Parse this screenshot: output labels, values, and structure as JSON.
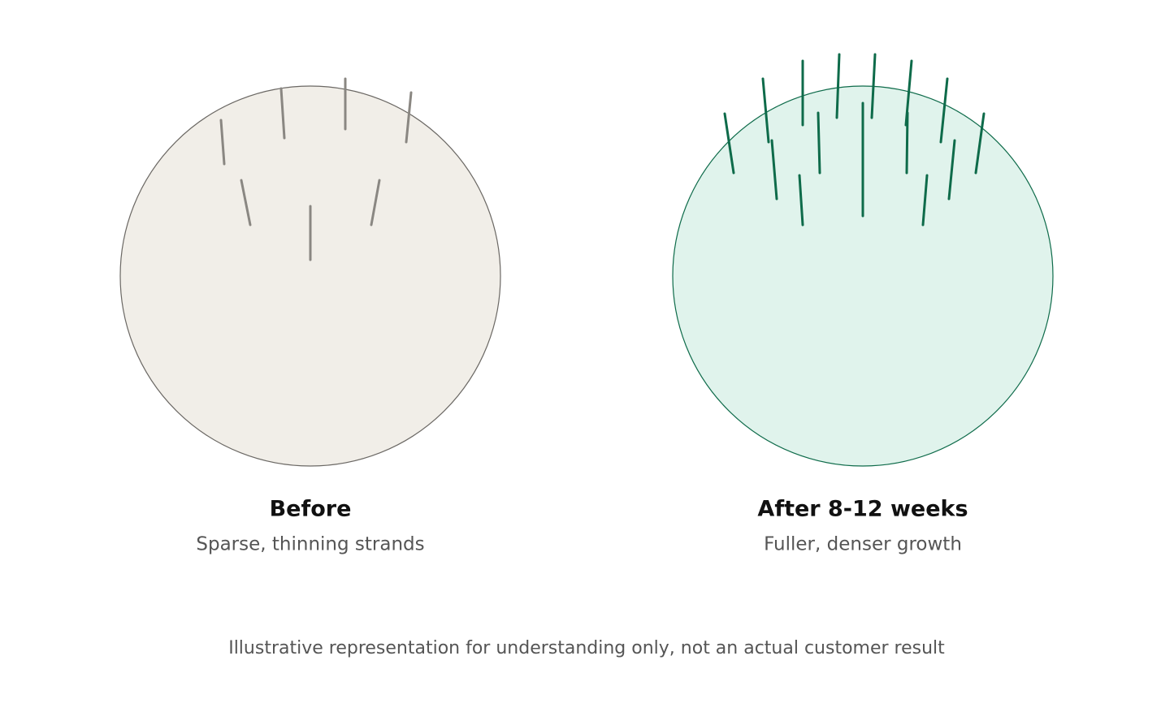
{
  "before": {
    "title": "Before",
    "subtitle": "Sparse, thinning strands"
  },
  "after": {
    "title": "After 8-12 weeks",
    "subtitle": "Fuller, denser growth"
  },
  "footnote": "Illustrative representation for understanding only, not an actual customer result"
}
